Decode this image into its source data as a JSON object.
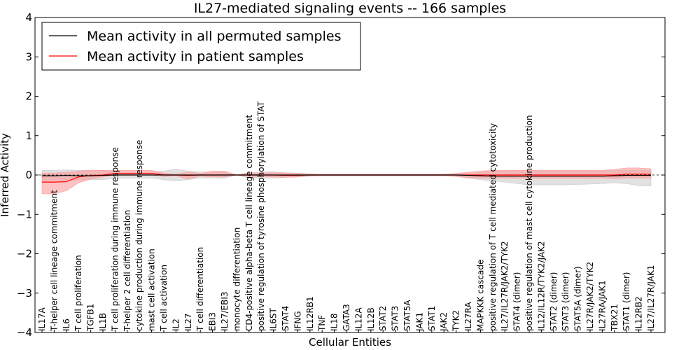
{
  "chart_data": {
    "type": "line",
    "title": "IL27-mediated signaling events -- 166 samples",
    "xlabel": "Cellular Entities",
    "ylabel": "Inferred Activity",
    "ylim": [
      -4,
      4
    ],
    "yticks": [
      -4,
      -3,
      -2,
      -1,
      0,
      1,
      2,
      3,
      4
    ],
    "ytick_labels": [
      "−4",
      "−3",
      "−2",
      "−1",
      "0",
      "1",
      "2",
      "3",
      "4"
    ],
    "grid": false,
    "legend_position": "top-left",
    "categories": [
      "IL17A",
      "T-helper cell lineage commitment",
      "IL6",
      "T cell proliferation",
      "TGFB1",
      "IL1B",
      "T cell proliferation during immune response",
      "T-helper 2 cell differentiation",
      "cytokine production during immune response",
      "mast cell activation",
      "T cell activation",
      "IL2",
      "IL27",
      "T cell differentiation",
      "EBI3",
      "IL27/EBI3",
      "monocyte differentiation",
      "CD4-positive alpha-beta T cell lineage commitment",
      "positive regulation of tyrosine phosphorylation of STAT",
      "IL6ST",
      "STAT4",
      "IFNG",
      "IL12RB1",
      "TNF",
      "IL18",
      "GATA3",
      "IL12A",
      "IL12B",
      "STAT2",
      "STAT3",
      "STAT5A",
      "JAK1",
      "STAT1",
      "JAK2",
      "TYK2",
      "IL27RA",
      "MAPKKK cascade",
      "positive regulation of T cell mediated cytotoxicity",
      "IL27/IL27R/JAK2/TYK2",
      "STAT4 (dimer)",
      "positive regulation of mast cell cytokine production",
      "IL12/IL12R/TYK2/JAK2",
      "STAT2 (dimer)",
      "STAT3 (dimer)",
      "STAT5A (dimer)",
      "IL27R/JAK2/TYK2",
      "IL27RA/JAK1",
      "TBX21",
      "STAT1 (dimer)",
      "IL12RB2",
      "IL27/IL27R/JAK1"
    ],
    "series": [
      {
        "name": "Mean activity in all permuted samples",
        "color": "#000000",
        "band_color": "#c8c8c8",
        "values": [
          -0.02,
          -0.02,
          -0.01,
          -0.02,
          -0.02,
          -0.01,
          0.0,
          0.0,
          0.0,
          0.0,
          0.0,
          0.0,
          0.0,
          0.0,
          0.0,
          0.0,
          0.0,
          0.0,
          0.0,
          0.0,
          0.0,
          0.0,
          0.0,
          0.0,
          0.0,
          0.0,
          0.0,
          0.0,
          0.0,
          0.0,
          0.0,
          0.0,
          0.0,
          0.0,
          0.0,
          -0.01,
          -0.02,
          -0.03,
          -0.03,
          -0.03,
          -0.03,
          -0.03,
          -0.03,
          -0.03,
          -0.03,
          -0.03,
          -0.03,
          -0.02,
          -0.01,
          -0.01,
          -0.01
        ],
        "upper": [
          0.12,
          0.12,
          0.13,
          0.12,
          0.12,
          0.11,
          0.08,
          0.08,
          0.08,
          0.08,
          0.1,
          0.15,
          0.1,
          0.08,
          0.07,
          0.07,
          0.0,
          0.07,
          0.07,
          0.08,
          0.06,
          0.05,
          0.03,
          0.02,
          0.02,
          0.02,
          0.02,
          0.02,
          0.02,
          0.02,
          0.02,
          0.02,
          0.02,
          0.02,
          0.03,
          0.05,
          0.07,
          0.1,
          0.1,
          0.12,
          0.12,
          0.12,
          0.12,
          0.12,
          0.12,
          0.12,
          0.12,
          0.12,
          0.12,
          0.12,
          0.12
        ],
        "lower": [
          -0.14,
          -0.14,
          -0.14,
          -0.13,
          -0.12,
          -0.12,
          -0.08,
          -0.08,
          -0.08,
          -0.08,
          -0.12,
          -0.15,
          -0.12,
          -0.08,
          -0.08,
          -0.08,
          0.0,
          -0.08,
          -0.08,
          -0.08,
          -0.06,
          -0.05,
          -0.03,
          -0.02,
          -0.02,
          -0.02,
          -0.02,
          -0.02,
          -0.02,
          -0.02,
          -0.02,
          -0.02,
          -0.02,
          -0.02,
          -0.04,
          -0.08,
          -0.12,
          -0.15,
          -0.18,
          -0.22,
          -0.25,
          -0.25,
          -0.25,
          -0.25,
          -0.24,
          -0.23,
          -0.22,
          -0.2,
          -0.22,
          -0.27,
          -0.28
        ]
      },
      {
        "name": "Mean activity in patient samples",
        "color": "#ff0000",
        "band_color": "#ff9999",
        "values": [
          -0.18,
          -0.18,
          -0.17,
          -0.05,
          -0.01,
          0.0,
          0.04,
          0.04,
          0.04,
          0.04,
          0.0,
          0.0,
          -0.01,
          0.0,
          0.0,
          0.0,
          0.0,
          0.0,
          0.0,
          0.0,
          -0.01,
          -0.01,
          0.0,
          0.0,
          0.0,
          0.0,
          0.0,
          0.0,
          0.0,
          0.0,
          0.0,
          0.0,
          0.0,
          0.0,
          0.0,
          0.0,
          0.0,
          0.0,
          0.0,
          0.0,
          0.0,
          0.0,
          0.0,
          0.0,
          0.0,
          0.0,
          0.0,
          0.0,
          0.02,
          0.02,
          0.02
        ],
        "upper": [
          0.05,
          0.05,
          0.07,
          0.1,
          0.12,
          0.12,
          0.12,
          0.12,
          0.12,
          0.12,
          0.05,
          0.02,
          0.08,
          0.04,
          0.1,
          0.1,
          0.0,
          0.05,
          0.05,
          0.06,
          0.05,
          0.04,
          0.02,
          0.02,
          0.02,
          0.02,
          0.02,
          0.02,
          0.02,
          0.02,
          0.02,
          0.02,
          0.02,
          0.02,
          0.04,
          0.07,
          0.1,
          0.12,
          0.12,
          0.12,
          0.12,
          0.12,
          0.12,
          0.12,
          0.12,
          0.12,
          0.12,
          0.14,
          0.18,
          0.18,
          0.16
        ],
        "lower": [
          -0.48,
          -0.48,
          -0.4,
          -0.2,
          -0.1,
          -0.05,
          0.0,
          0.0,
          0.0,
          0.0,
          -0.04,
          -0.02,
          -0.1,
          -0.03,
          -0.05,
          -0.05,
          0.0,
          -0.04,
          -0.04,
          -0.05,
          -0.06,
          -0.05,
          -0.02,
          -0.02,
          -0.02,
          -0.02,
          -0.02,
          -0.02,
          -0.02,
          -0.02,
          -0.02,
          -0.02,
          -0.02,
          -0.02,
          -0.03,
          -0.07,
          -0.08,
          -0.08,
          -0.08,
          -0.08,
          -0.08,
          -0.08,
          -0.08,
          -0.08,
          -0.08,
          -0.08,
          -0.08,
          -0.09,
          -0.08,
          -0.08,
          -0.08
        ]
      }
    ]
  }
}
